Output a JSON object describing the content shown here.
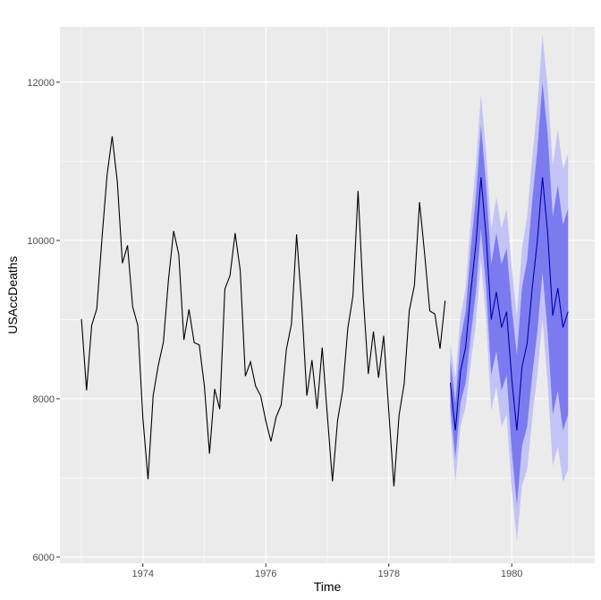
{
  "chart_data": {
    "type": "line",
    "xlabel": "Time",
    "ylabel": "USAccDeaths",
    "xlim": [
      1972.65,
      1981.35
    ],
    "ylim": [
      5920,
      12700
    ],
    "x_ticks": [
      1974,
      1976,
      1978,
      1980
    ],
    "x_tick_labels": [
      "1974",
      "1976",
      "1978",
      "1980"
    ],
    "y_ticks": [
      6000,
      8000,
      10000,
      12000
    ],
    "y_tick_labels": [
      "6000",
      "8000",
      "10000",
      "12000"
    ],
    "grid": true,
    "colors": {
      "panel": "#ebebeb",
      "grid": "#ffffff",
      "observed": "#000000",
      "forecast": "#0000aa",
      "band_80": "#7b7bef",
      "band_95": "#c3c3f6"
    },
    "series": [
      {
        "start": 1973,
        "frequency": 12,
        "values": [
          9007,
          8106,
          8928,
          9137,
          10017,
          10826,
          11317,
          10744,
          9713,
          9938,
          9161,
          8927,
          7750,
          6981,
          8038,
          8422,
          8714,
          9512,
          10120,
          9823,
          8743,
          9129,
          8710,
          8680,
          8162,
          7306,
          8124,
          7870,
          9387,
          9556,
          10093,
          9620,
          8285,
          8466,
          8160,
          8034,
          7717,
          7461,
          7767,
          7925,
          8623,
          8945,
          10078,
          9179,
          8037,
          8488,
          7874,
          8647,
          7792,
          6957,
          7726,
          8106,
          8890,
          9299,
          10625,
          9302,
          8314,
          8850,
          8265,
          8796,
          7836,
          6892,
          7791,
          8192,
          9115,
          9434,
          10484,
          9827,
          9110,
          9070,
          8633,
          9240
        ]
      },
      {
        "start": 1979,
        "frequency": 12,
        "values": [
          8200,
          7600,
          8350,
          8650,
          9350,
          9950,
          10800,
          10050,
          9000,
          9350,
          8900,
          9100,
          8250,
          7600,
          8400,
          8700,
          9400,
          10000,
          10800,
          10100,
          9050,
          9400,
          8900,
          9100
        ],
        "lo80": [
          7900,
          7250,
          7950,
          8200,
          8800,
          9350,
          10150,
          9400,
          8300,
          8600,
          8100,
          8300,
          7350,
          6650,
          7400,
          7650,
          8300,
          8850,
          9600,
          8850,
          7800,
          8100,
          7600,
          7800
        ],
        "hi80": [
          8500,
          7950,
          8750,
          9100,
          9900,
          10550,
          11450,
          10700,
          9700,
          10100,
          9700,
          9900,
          9150,
          8550,
          9400,
          9750,
          10500,
          11150,
          12000,
          11350,
          10300,
          10700,
          10200,
          10400
        ],
        "lo95": [
          7700,
          6950,
          7650,
          7900,
          8450,
          8950,
          9750,
          9000,
          7850,
          8150,
          7650,
          7800,
          6850,
          6200,
          6900,
          7100,
          7750,
          8300,
          9000,
          8200,
          7150,
          7400,
          6950,
          7100
        ],
        "hi95": [
          8700,
          8250,
          9050,
          9400,
          10250,
          10950,
          11850,
          11100,
          10150,
          10550,
          10150,
          10400,
          9650,
          9050,
          9900,
          10300,
          11050,
          11700,
          12600,
          11950,
          10950,
          11400,
          10900,
          11100
        ]
      }
    ]
  }
}
